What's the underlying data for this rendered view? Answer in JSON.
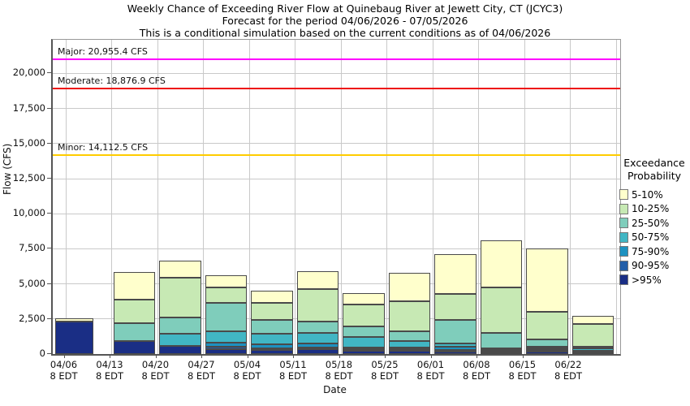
{
  "title": {
    "line1": "Weekly Chance of Exceeding River Flow at Quinebaug River at Jewett City, CT (JCYC3)",
    "line2": "Forecast for the period 04/06/2026 - 07/05/2026",
    "line3": "This is a conditional simulation based on the current conditions as of 04/06/2026"
  },
  "axes": {
    "y_title": "Flow (CFS)",
    "x_title": "Date",
    "y_tick_values": [
      0,
      2500,
      5000,
      7500,
      10000,
      12500,
      15000,
      17500,
      20000
    ],
    "y_tick_labels": [
      "0",
      "2,500",
      "5,000",
      "7,500",
      "10,000",
      "12,500",
      "15,000",
      "17,500",
      "20,000"
    ],
    "x_tick_sublabel": "8 EDT"
  },
  "thresholds": [
    {
      "name": "major",
      "label": "Major: 20,955.4 CFS",
      "value": 20955.4,
      "color": "#ff00ff"
    },
    {
      "name": "moderate",
      "label": "Moderate: 18,876.9 CFS",
      "value": 18876.9,
      "color": "#ee1111"
    },
    {
      "name": "minor",
      "label": "Minor: 14,112.5 CFS",
      "value": 14112.5,
      "color": "#ffcc00"
    }
  ],
  "legend": {
    "title": "Exceedance Probability",
    "items": [
      {
        "label": "5-10%",
        "color": "#ffffcc"
      },
      {
        "label": "10-25%",
        "color": "#c7e9b4"
      },
      {
        "label": "25-50%",
        "color": "#7fcdbb"
      },
      {
        "label": "50-75%",
        "color": "#41b6c4"
      },
      {
        "label": "75-90%",
        "color": "#1d91c0"
      },
      {
        "label": "90-95%",
        "color": "#225ea8"
      },
      {
        "label": ">95%",
        "color": "#1a2e85"
      }
    ]
  },
  "chart_data": {
    "type": "bar",
    "stacked": true,
    "title": "Weekly Chance of Exceeding River Flow at Quinebaug River at Jewett City, CT (JCYC3)",
    "subtitle": "Forecast for the period 04/06/2026 - 07/05/2026",
    "note": "This is a conditional simulation based on the current conditions as of 04/06/2026",
    "xlabel": "Date",
    "ylabel": "Flow (CFS)",
    "ylim": [
      0,
      22400
    ],
    "grid": true,
    "legend_position": "right",
    "categories": [
      "04/06",
      "04/13",
      "04/20",
      "04/27",
      "05/04",
      "05/11",
      "05/18",
      "05/25",
      "06/01",
      "06/08",
      "06/15",
      "06/22"
    ],
    "bands_bottom_to_top": [
      {
        "name": ">95%",
        "color": "#1a2e85"
      },
      {
        "name": "90-95%",
        "color": "#225ea8"
      },
      {
        "name": "75-90%",
        "color": "#1d91c0"
      },
      {
        "name": "50-75%",
        "color": "#41b6c4"
      },
      {
        "name": "25-50%",
        "color": "#7fcdbb"
      },
      {
        "name": "10-25%",
        "color": "#c7e9b4"
      },
      {
        "name": "5-10%",
        "color": "#ffffcc"
      }
    ],
    "bars_cumulative_cfs": [
      [
        2290,
        2290,
        2290,
        2290,
        2290,
        2290,
        2520
      ],
      [
        930,
        930,
        930,
        930,
        2180,
        3860,
        5860
      ],
      [
        570,
        570,
        570,
        1470,
        2620,
        5430,
        6630
      ],
      [
        330,
        520,
        840,
        1600,
        3630,
        4770,
        5620
      ],
      [
        300,
        420,
        705,
        1470,
        2420,
        3670,
        4490
      ],
      [
        320,
        460,
        760,
        1510,
        2330,
        4620,
        5930
      ],
      [
        250,
        350,
        460,
        1190,
        1950,
        3510,
        4340
      ],
      [
        230,
        330,
        460,
        930,
        1600,
        3770,
        5800
      ],
      [
        155,
        270,
        500,
        760,
        2420,
        4280,
        7105
      ],
      [
        120,
        200,
        280,
        385,
        1490,
        4770,
        8100
      ],
      [
        160,
        280,
        400,
        520,
        1030,
        3000,
        7520
      ],
      [
        80,
        150,
        230,
        380,
        520,
        2140,
        2710
      ]
    ]
  }
}
